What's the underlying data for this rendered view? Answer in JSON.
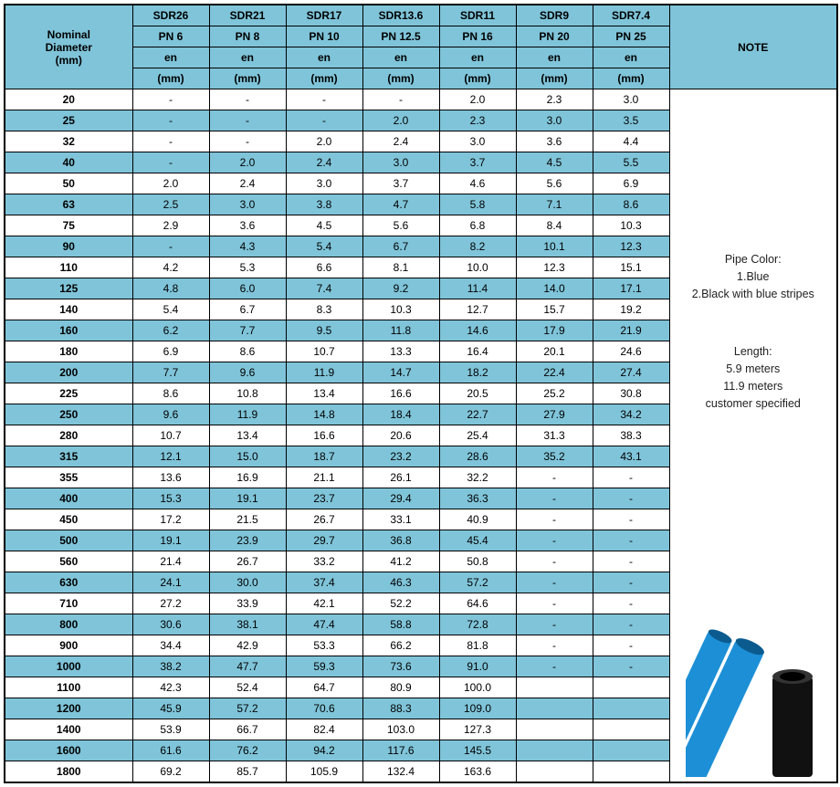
{
  "header": {
    "nominal_line1": "Nominal",
    "nominal_line2": "Diameter",
    "nominal_line3": "(mm)",
    "note_label": "NOTE",
    "sdr": [
      "SDR26",
      "SDR21",
      "SDR17",
      "SDR13.6",
      "SDR11",
      "SDR9",
      "SDR7.4"
    ],
    "pn": [
      "PN  6",
      "PN  8",
      "PN  10",
      "PN  12.5",
      "PN  16",
      "PN  20",
      "PN  25"
    ],
    "en_label": "en",
    "en_unit": "(mm)"
  },
  "rows": [
    {
      "d": "20",
      "v": [
        "-",
        "-",
        "-",
        "-",
        "2.0",
        "2.3",
        "3.0"
      ],
      "c": "w"
    },
    {
      "d": "25",
      "v": [
        "-",
        "-",
        "-",
        "2.0",
        "2.3",
        "3.0",
        "3.5"
      ],
      "c": "b"
    },
    {
      "d": "32",
      "v": [
        "-",
        "-",
        "2.0",
        "2.4",
        "3.0",
        "3.6",
        "4.4"
      ],
      "c": "w"
    },
    {
      "d": "40",
      "v": [
        "-",
        "2.0",
        "2.4",
        "3.0",
        "3.7",
        "4.5",
        "5.5"
      ],
      "c": "b"
    },
    {
      "d": "50",
      "v": [
        "2.0",
        "2.4",
        "3.0",
        "3.7",
        "4.6",
        "5.6",
        "6.9"
      ],
      "c": "w"
    },
    {
      "d": "63",
      "v": [
        "2.5",
        "3.0",
        "3.8",
        "4.7",
        "5.8",
        "7.1",
        "8.6"
      ],
      "c": "b"
    },
    {
      "d": "75",
      "v": [
        "2.9",
        "3.6",
        "4.5",
        "5.6",
        "6.8",
        "8.4",
        "10.3"
      ],
      "c": "w"
    },
    {
      "d": "90",
      "v": [
        "-",
        "4.3",
        "5.4",
        "6.7",
        "8.2",
        "10.1",
        "12.3"
      ],
      "c": "b"
    },
    {
      "d": "110",
      "v": [
        "4.2",
        "5.3",
        "6.6",
        "8.1",
        "10.0",
        "12.3",
        "15.1"
      ],
      "c": "w"
    },
    {
      "d": "125",
      "v": [
        "4.8",
        "6.0",
        "7.4",
        "9.2",
        "11.4",
        "14.0",
        "17.1"
      ],
      "c": "b"
    },
    {
      "d": "140",
      "v": [
        "5.4",
        "6.7",
        "8.3",
        "10.3",
        "12.7",
        "15.7",
        "19.2"
      ],
      "c": "w"
    },
    {
      "d": "160",
      "v": [
        "6.2",
        "7.7",
        "9.5",
        "11.8",
        "14.6",
        "17.9",
        "21.9"
      ],
      "c": "b"
    },
    {
      "d": "180",
      "v": [
        "6.9",
        "8.6",
        "10.7",
        "13.3",
        "16.4",
        "20.1",
        "24.6"
      ],
      "c": "w"
    },
    {
      "d": "200",
      "v": [
        "7.7",
        "9.6",
        "11.9",
        "14.7",
        "18.2",
        "22.4",
        "27.4"
      ],
      "c": "b"
    },
    {
      "d": "225",
      "v": [
        "8.6",
        "10.8",
        "13.4",
        "16.6",
        "20.5",
        "25.2",
        "30.8"
      ],
      "c": "w"
    },
    {
      "d": "250",
      "v": [
        "9.6",
        "11.9",
        "14.8",
        "18.4",
        "22.7",
        "27.9",
        "34.2"
      ],
      "c": "b"
    },
    {
      "d": "280",
      "v": [
        "10.7",
        "13.4",
        "16.6",
        "20.6",
        "25.4",
        "31.3",
        "38.3"
      ],
      "c": "w"
    },
    {
      "d": "315",
      "v": [
        "12.1",
        "15.0",
        "18.7",
        "23.2",
        "28.6",
        "35.2",
        "43.1"
      ],
      "c": "b"
    },
    {
      "d": "355",
      "v": [
        "13.6",
        "16.9",
        "21.1",
        "26.1",
        "32.2",
        "-",
        "-"
      ],
      "c": "w"
    },
    {
      "d": "400",
      "v": [
        "15.3",
        "19.1",
        "23.7",
        "29.4",
        "36.3",
        "-",
        "-"
      ],
      "c": "b"
    },
    {
      "d": "450",
      "v": [
        "17.2",
        "21.5",
        "26.7",
        "33.1",
        "40.9",
        "-",
        "-"
      ],
      "c": "w"
    },
    {
      "d": "500",
      "v": [
        "19.1",
        "23.9",
        "29.7",
        "36.8",
        "45.4",
        "-",
        "-"
      ],
      "c": "b"
    },
    {
      "d": "560",
      "v": [
        "21.4",
        "26.7",
        "33.2",
        "41.2",
        "50.8",
        "-",
        "-"
      ],
      "c": "w"
    },
    {
      "d": "630",
      "v": [
        "24.1",
        "30.0",
        "37.4",
        "46.3",
        "57.2",
        "-",
        "-"
      ],
      "c": "b"
    },
    {
      "d": "710",
      "v": [
        "27.2",
        "33.9",
        "42.1",
        "52.2",
        "64.6",
        "-",
        "-"
      ],
      "c": "w"
    },
    {
      "d": "800",
      "v": [
        "30.6",
        "38.1",
        "47.4",
        "58.8",
        "72.8",
        "-",
        "-"
      ],
      "c": "b"
    },
    {
      "d": "900",
      "v": [
        "34.4",
        "42.9",
        "53.3",
        "66.2",
        "81.8",
        "-",
        "-"
      ],
      "c": "w"
    },
    {
      "d": "1000",
      "v": [
        "38.2",
        "47.7",
        "59.3",
        "73.6",
        "91.0",
        "-",
        "-"
      ],
      "c": "b"
    },
    {
      "d": "1100",
      "v": [
        "42.3",
        "52.4",
        "64.7",
        "80.9",
        "100.0",
        "",
        ""
      ],
      "c": "w"
    },
    {
      "d": "1200",
      "v": [
        "45.9",
        "57.2",
        "70.6",
        "88.3",
        "109.0",
        "",
        ""
      ],
      "c": "b"
    },
    {
      "d": "1400",
      "v": [
        "53.9",
        "66.7",
        "82.4",
        "103.0",
        "127.3",
        "",
        ""
      ],
      "c": "w"
    },
    {
      "d": "1600",
      "v": [
        "61.6",
        "76.2",
        "94.2",
        "117.6",
        "145.5",
        "",
        ""
      ],
      "c": "b"
    },
    {
      "d": "1800",
      "v": [
        "69.2",
        "85.7",
        "105.9",
        "132.4",
        "163.6",
        "",
        ""
      ],
      "c": "w"
    }
  ],
  "notes": {
    "line1": "Pipe Color:",
    "line2": "1.Blue",
    "line3": "2.Black with blue stripes",
    "line4": "Length:",
    "line5": "5.9  meters",
    "line6": "11.9  meters",
    "line7": "customer  specified"
  },
  "colors": {
    "header_bg": "#7fc4d9",
    "row_blue": "#7fc4d9",
    "row_white": "#ffffff",
    "pipe_blue": "#1d8fd6",
    "pipe_black": "#111111"
  }
}
